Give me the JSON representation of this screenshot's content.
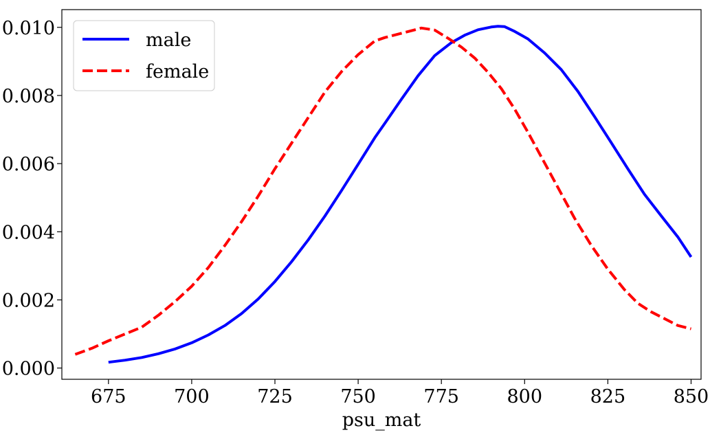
{
  "chart_data": {
    "type": "line",
    "title": "",
    "xlabel": "psu_mat",
    "ylabel": "",
    "xlim": [
      661,
      853
    ],
    "ylim": [
      -0.00033,
      0.01052
    ],
    "x_ticks": [
      675,
      700,
      725,
      750,
      775,
      800,
      825,
      850
    ],
    "y_ticks": [
      0.0,
      0.002,
      0.004,
      0.006,
      0.008,
      0.01
    ],
    "y_tick_labels": [
      "0.000",
      "0.002",
      "0.004",
      "0.006",
      "0.008",
      "0.010"
    ],
    "grid": false,
    "legend": {
      "placement": "top-left"
    },
    "series": [
      {
        "name": "male",
        "color": "#0000ff",
        "style": "solid",
        "x": [
          675,
          680,
          685,
          690,
          695,
          700,
          705,
          710,
          715,
          720,
          725,
          730,
          735,
          740,
          745,
          750,
          755,
          758,
          763,
          768,
          773,
          778,
          782,
          786,
          790,
          792,
          794,
          797,
          801,
          806,
          811,
          816,
          821,
          826,
          831,
          836,
          841,
          846,
          850
        ],
        "y": [
          0.00017,
          0.00023,
          0.00031,
          0.00042,
          0.00056,
          0.00074,
          0.00097,
          0.00125,
          0.0016,
          0.00203,
          0.00254,
          0.00312,
          0.00376,
          0.00446,
          0.00521,
          0.00598,
          0.00676,
          0.00718,
          0.00789,
          0.00858,
          0.00917,
          0.00955,
          0.00977,
          0.00993,
          0.01001,
          0.01003,
          0.01002,
          0.00988,
          0.00966,
          0.00925,
          0.00876,
          0.00812,
          0.00738,
          0.00662,
          0.00585,
          0.0051,
          0.00447,
          0.00385,
          0.00326
        ]
      },
      {
        "name": "female",
        "color": "#ff0000",
        "style": "dashed",
        "x": [
          665,
          670,
          675,
          680,
          685,
          690,
          695,
          700,
          705,
          710,
          715,
          720,
          725,
          730,
          735,
          740,
          745,
          750,
          755,
          758,
          762,
          766,
          769,
          773,
          777,
          781,
          785,
          789,
          793,
          797,
          801,
          805,
          810,
          815,
          820,
          825,
          830,
          834,
          838,
          842,
          846,
          850
        ],
        "y": [
          0.0004,
          0.00058,
          0.0008,
          0.001,
          0.0012,
          0.00155,
          0.00195,
          0.0024,
          0.00295,
          0.0036,
          0.0043,
          0.00505,
          0.00585,
          0.0066,
          0.00735,
          0.0081,
          0.0087,
          0.0092,
          0.0096,
          0.0097,
          0.0098,
          0.0099,
          0.00998,
          0.00992,
          0.00968,
          0.00942,
          0.0091,
          0.00868,
          0.0082,
          0.0076,
          0.00692,
          0.0062,
          0.0053,
          0.0044,
          0.0036,
          0.0029,
          0.0023,
          0.0019,
          0.00165,
          0.00145,
          0.00125,
          0.00115
        ]
      }
    ]
  }
}
